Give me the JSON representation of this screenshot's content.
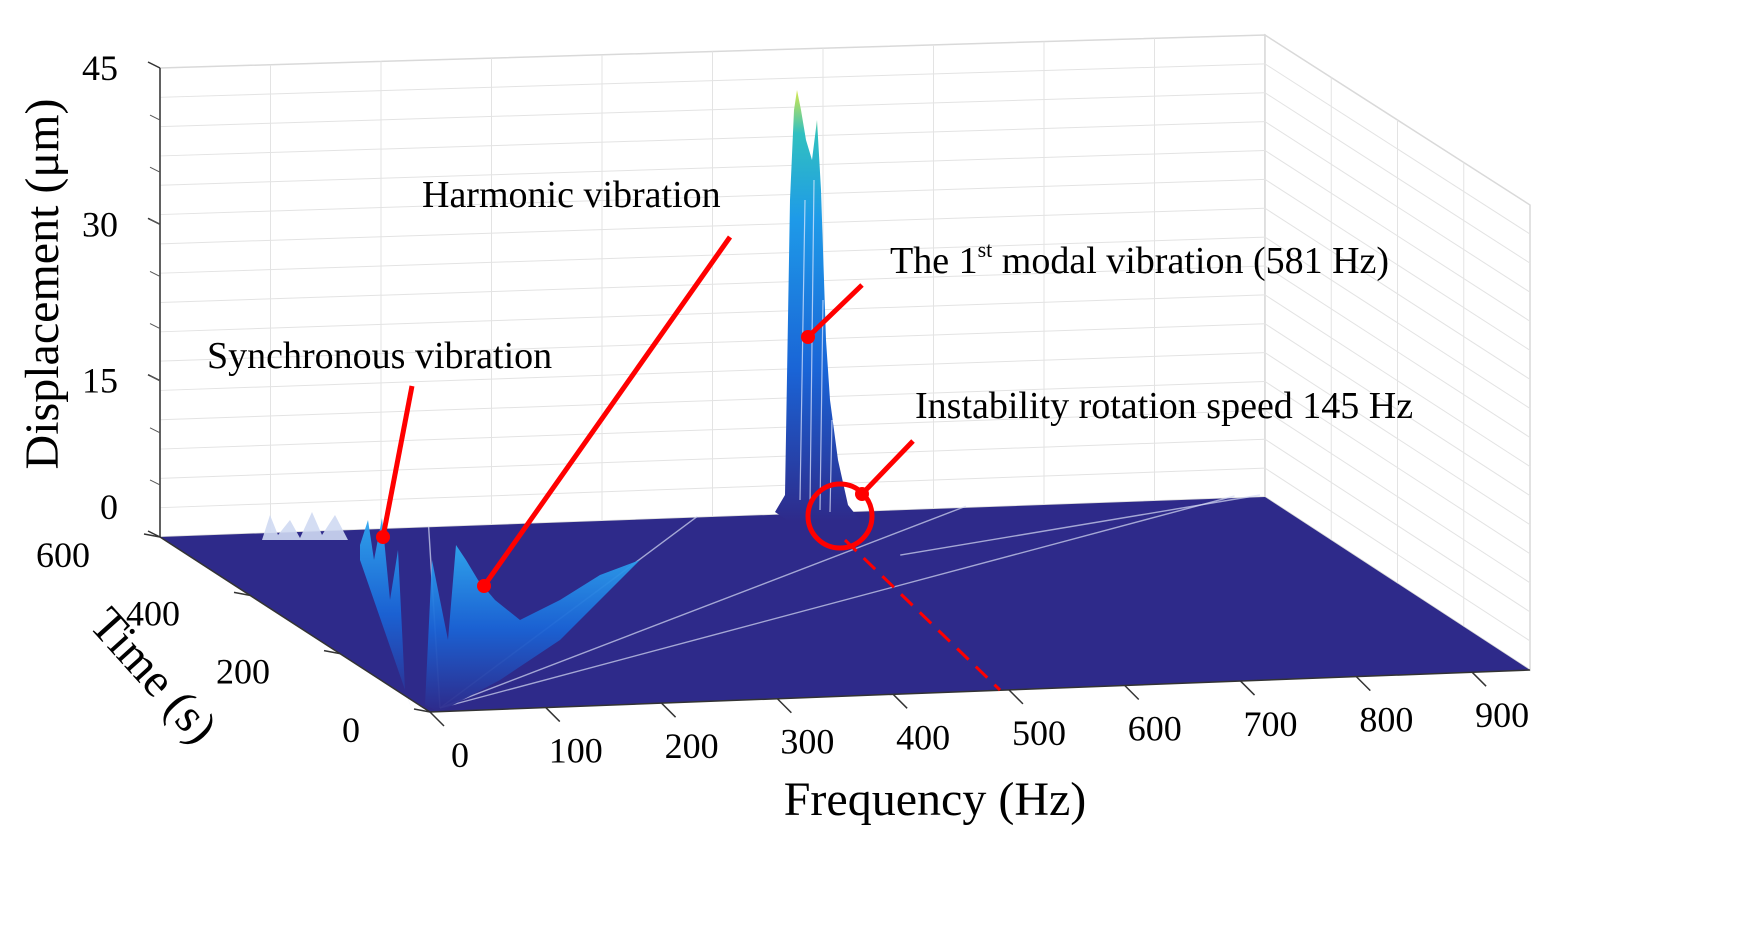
{
  "chart_data": {
    "type": "waterfall-3d",
    "xlabel": "Frequency  (Hz)",
    "ylabel": "Time (s)",
    "zlabel": "Displacement (μm)",
    "x_ticks": [
      "0",
      "100",
      "200",
      "300",
      "400",
      "500",
      "600",
      "700",
      "800",
      "900"
    ],
    "y_ticks": [
      "0",
      "200",
      "400",
      "600"
    ],
    "z_ticks": [
      "0",
      "15",
      "30",
      "45"
    ],
    "xlim": [
      0,
      950
    ],
    "ylim": [
      0,
      600
    ],
    "zlim": [
      0,
      45
    ],
    "grid": true,
    "colormap": [
      "#2e2a8a",
      "#1a64d6",
      "#1e9ae8",
      "#31c0c0",
      "#d8e84a"
    ],
    "series": [
      {
        "frequency_hz": 15,
        "time_s": [
          0,
          600
        ],
        "peak_um": 1.5
      },
      {
        "frequency_hz": 30,
        "time_s": [
          0,
          600
        ],
        "peak_um": 3.0
      },
      {
        "frequency_hz": 145,
        "time_s": [
          0,
          600
        ],
        "peak_um": 3.5
      },
      {
        "frequency_hz": 581,
        "time_s": [
          500,
          600
        ],
        "peak_um": 40.0
      },
      {
        "frequency_hz": 300,
        "time_s": [
          0,
          600
        ],
        "peak_um": 0.3
      }
    ],
    "annotations": [
      {
        "text": "Synchronous vibration"
      },
      {
        "text": "Harmonic vibration"
      },
      {
        "text_before": "The 1",
        "sup": "st",
        "text_after": " modal vibration (581 Hz)"
      },
      {
        "text": "Instability rotation speed 145 Hz"
      }
    ],
    "annotation_color": "#ff0000"
  }
}
